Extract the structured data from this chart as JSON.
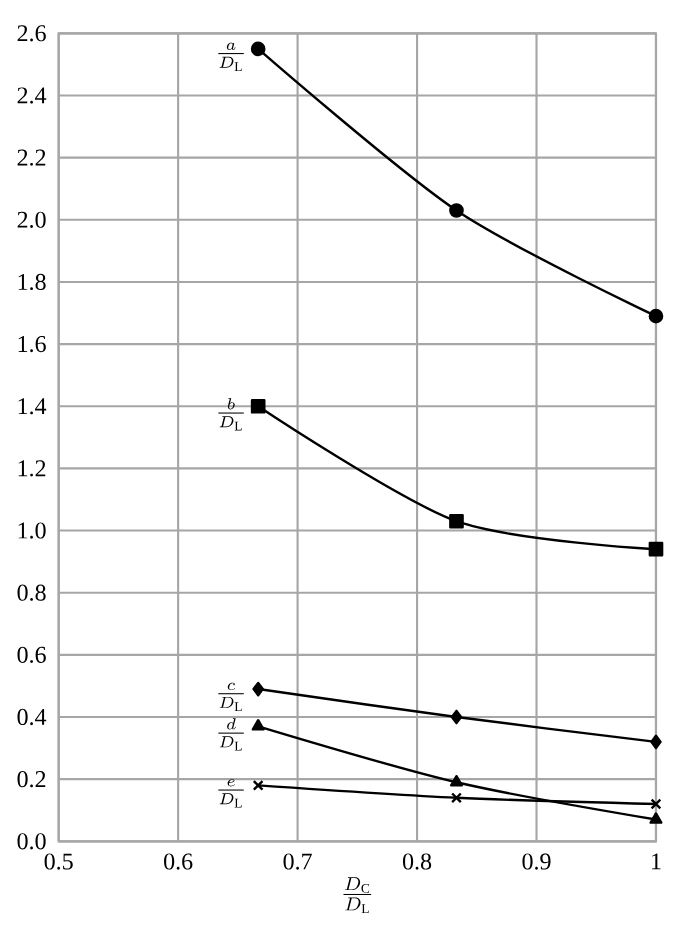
{
  "chart_data": {
    "type": "line",
    "xlabel": "\\frac{D_{\\mathrm{C}}}{D_{\\mathrm{L}}}",
    "x": [
      0.667,
      0.833,
      1
    ],
    "series": [
      {
        "name": "\\frac{a}{D_{\\mathrm{L}}}",
        "color": "#000000",
        "marker": "circle",
        "values": [
          2.55,
          2.03,
          1.69
        ]
      },
      {
        "name": "\\frac{b}{D_{\\mathrm{L}}}",
        "color": "#000000",
        "marker": "square",
        "values": [
          1.4,
          1.03,
          0.94
        ]
      },
      {
        "name": "\\frac{c}{D_{\\mathrm{L}}}",
        "color": "#000000",
        "marker": "diamond",
        "values": [
          0.49,
          0.4,
          0.32
        ]
      },
      {
        "name": "\\frac{d}{D_{\\mathrm{L}}}",
        "color": "#000000",
        "marker": "triangle",
        "values": [
          0.37,
          0.19,
          0.07
        ]
      },
      {
        "name": "\\frac{e}{D_{\\mathrm{L}}}",
        "color": "#000000",
        "marker": "cross",
        "values": [
          0.18,
          0.14,
          0.12
        ]
      }
    ],
    "xlim": [
      0.5,
      1
    ],
    "xticks": [
      0.5,
      0.6,
      0.7,
      0.8,
      0.9,
      1
    ],
    "ylim": [
      0,
      2.6
    ],
    "yticks": [
      {
        "value": 0,
        "label": "0.0"
      },
      0.2,
      0.4,
      0.6,
      0.8,
      {
        "value": 1,
        "label": "1.0"
      },
      1.2,
      1.4,
      1.6,
      1.8,
      {
        "value": 2,
        "label": "2.0"
      },
      2.2,
      2.4,
      2.6
    ],
    "grid": true,
    "legend": false,
    "line_style": "solid"
  }
}
